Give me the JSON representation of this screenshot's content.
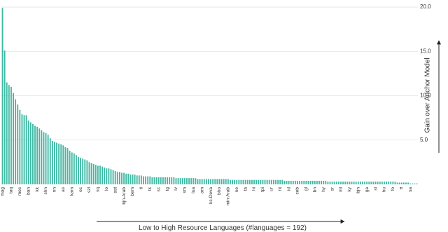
{
  "chart_data": {
    "type": "bar",
    "x_label": "Low to High Resource Languages (#languages = 192)",
    "y_label": "Gain over Anchor Model",
    "color": "#3fb8a3",
    "grid": true,
    "y_axis_side": "right",
    "ylim": [
      0,
      20.4
    ],
    "yticks": [
      {
        "value": 5,
        "label": "5.0"
      },
      {
        "value": 10,
        "label": "10.0"
      },
      {
        "value": 15,
        "label": "15.0"
      },
      {
        "value": 20,
        "label": "20.0"
      }
    ],
    "categories": [
      "mag",
      null,
      null,
      null,
      "taq",
      null,
      null,
      null,
      "mos",
      null,
      null,
      null,
      "ban",
      null,
      null,
      null,
      "kk",
      null,
      null,
      null,
      "shn",
      null,
      null,
      null,
      "nn",
      null,
      null,
      null,
      "as",
      null,
      null,
      null,
      "kam",
      null,
      null,
      null,
      "oc",
      null,
      null,
      null,
      "szl",
      null,
      null,
      null,
      "sq",
      null,
      null,
      null,
      "lo",
      null,
      null,
      null,
      "ast",
      null,
      null,
      null,
      "bjn-Arab",
      null,
      null,
      null,
      "bem",
      null,
      null,
      null,
      "ti",
      null,
      null,
      null,
      "tk",
      null,
      null,
      null,
      "sc",
      null,
      null,
      null,
      "tg",
      null,
      null,
      null,
      "lv",
      null,
      null,
      null,
      "sm",
      null,
      null,
      null,
      "lua",
      null,
      null,
      null,
      "am",
      null,
      null,
      null,
      "ks-Deva",
      null,
      null,
      null,
      "bho",
      null,
      null,
      null,
      "min-Arab",
      null,
      null,
      null,
      "ne",
      null,
      null,
      null,
      "ta",
      null,
      null,
      null,
      "hi",
      null,
      null,
      null,
      "tpi",
      null,
      null,
      null,
      "ur",
      null,
      null,
      null,
      "ht",
      null,
      null,
      null,
      "id",
      null,
      null,
      null,
      "ceb",
      null,
      null,
      null,
      "gl",
      null,
      null,
      null,
      "bn",
      null,
      null,
      null,
      "hy",
      null,
      null,
      null,
      "sr",
      null,
      null,
      null,
      "ml",
      null,
      null,
      null,
      "ky",
      null,
      null,
      null,
      "bjn",
      null,
      null,
      null,
      "ga",
      null,
      null,
      null,
      "sl",
      null,
      null,
      null,
      "hu",
      null,
      null,
      null,
      "fo",
      null,
      null,
      null,
      "ff",
      null,
      null,
      null,
      "sa",
      null,
      null,
      null
    ],
    "values": [
      19.9,
      15.1,
      11.5,
      11.2,
      11.0,
      10.3,
      9.6,
      9.0,
      8.4,
      7.9,
      7.8,
      7.8,
      7.2,
      7.0,
      6.8,
      6.6,
      6.5,
      6.3,
      6.1,
      5.9,
      5.8,
      5.6,
      5.2,
      4.9,
      4.8,
      4.7,
      4.6,
      4.5,
      4.4,
      4.2,
      4.1,
      3.8,
      3.6,
      3.5,
      3.3,
      3.1,
      3.0,
      2.9,
      2.8,
      2.7,
      2.5,
      2.4,
      2.3,
      2.2,
      2.1,
      2.1,
      2.0,
      1.9,
      1.8,
      1.8,
      1.7,
      1.6,
      1.5,
      1.4,
      1.4,
      1.3,
      1.3,
      1.2,
      1.2,
      1.1,
      1.1,
      1.1,
      1.0,
      1.0,
      1.0,
      0.9,
      0.9,
      0.9,
      0.9,
      0.8,
      0.8,
      0.8,
      0.8,
      0.8,
      0.8,
      0.8,
      0.8,
      0.8,
      0.8,
      0.8,
      0.7,
      0.7,
      0.7,
      0.7,
      0.7,
      0.7,
      0.7,
      0.7,
      0.7,
      0.7,
      0.6,
      0.6,
      0.6,
      0.6,
      0.6,
      0.6,
      0.6,
      0.6,
      0.6,
      0.6,
      0.6,
      0.6,
      0.6,
      0.6,
      0.6,
      0.5,
      0.5,
      0.5,
      0.5,
      0.5,
      0.5,
      0.5,
      0.5,
      0.5,
      0.5,
      0.5,
      0.5,
      0.5,
      0.5,
      0.5,
      0.5,
      0.5,
      0.5,
      0.5,
      0.5,
      0.5,
      0.5,
      0.5,
      0.5,
      0.5,
      0.4,
      0.4,
      0.4,
      0.4,
      0.4,
      0.4,
      0.4,
      0.4,
      0.4,
      0.4,
      0.4,
      0.4,
      0.4,
      0.4,
      0.4,
      0.4,
      0.4,
      0.4,
      0.4,
      0.4,
      0.3,
      0.3,
      0.3,
      0.3,
      0.3,
      0.3,
      0.3,
      0.3,
      0.3,
      0.3,
      0.3,
      0.3,
      0.3,
      0.3,
      0.3,
      0.3,
      0.3,
      0.3,
      0.3,
      0.3,
      0.3,
      0.3,
      0.3,
      0.3,
      0.3,
      0.3,
      0.3,
      0.3,
      0.3,
      0.3,
      0.3,
      0.3,
      0.2,
      0.2,
      0.2,
      0.2,
      0.2,
      0.2,
      0.1,
      0.1,
      0.1,
      0.1
    ]
  }
}
